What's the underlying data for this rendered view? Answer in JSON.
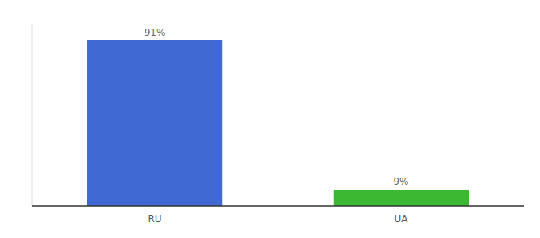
{
  "chart_data": {
    "type": "bar",
    "categories": [
      "RU",
      "UA"
    ],
    "values": [
      91,
      9
    ],
    "value_labels": [
      "91%",
      "9%"
    ],
    "colors": [
      "#4169d4",
      "#3cb832"
    ],
    "ylim": [
      0,
      100
    ],
    "data_labels": true,
    "tick_labels": "x"
  }
}
